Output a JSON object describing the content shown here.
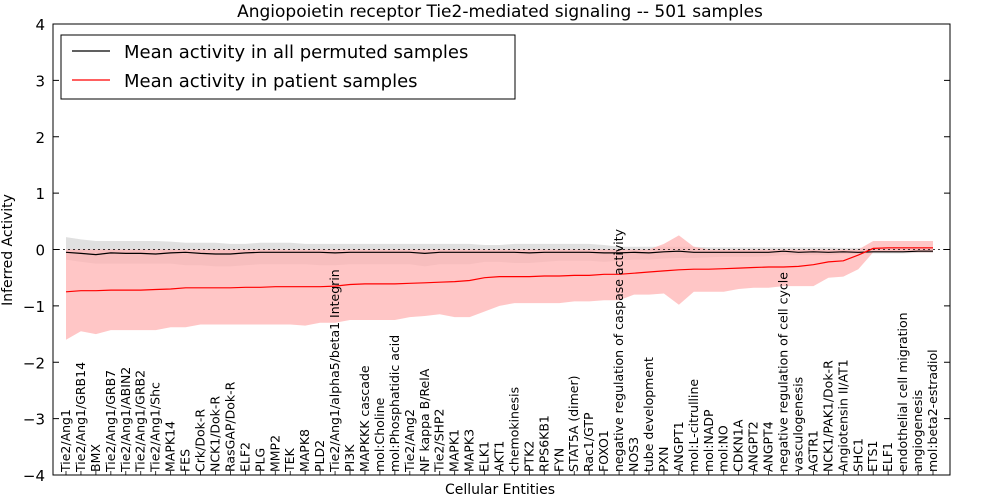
{
  "chart_data": {
    "type": "line",
    "title": "Angiopoietin receptor Tie2-mediated signaling -- 501 samples",
    "xlabel": "Cellular Entities",
    "ylabel": "Inferred Activity",
    "ylim": [
      -4,
      4
    ],
    "yticks": [
      -4,
      -3,
      -2,
      -1,
      0,
      1,
      2,
      3,
      4
    ],
    "grid": false,
    "legend_position": "upper-left",
    "zero_reference_line": 0,
    "categories": [
      "Tie2/Ang1",
      "Tie2/Ang1/GRB14",
      "BMX",
      "Tie2/Ang1/GRB7",
      "Tie2/Ang1/ABIN2",
      "Tie2/Ang1/GRB2",
      "Tie2/Ang1/Shc",
      "MAPK14",
      "FES",
      "Crk/Dok-R",
      "NCK1/Dok-R",
      "RasGAP/Dok-R",
      "ELF2",
      "PLG",
      "MMP2",
      "TEK",
      "MAPK8",
      "PLD2",
      "Tie2/Ang1/alpha5/beta1 Integrin",
      "PI3K",
      "MAPKKK cascade",
      "mol:Choline",
      "mol:Phosphatidic acid",
      "Tie2/Ang2",
      "NF kappa B/RelA",
      "Tie2/SHP2",
      "MAPK1",
      "MAPK3",
      "ELK1",
      "AKT1",
      "chemokinesis",
      "PTK2",
      "RPS6KB1",
      "FYN",
      "STAT5A (dimer)",
      "Rac1/GTP",
      "FOXO1",
      "negative regulation of caspase activity",
      "NOS3",
      "tube development",
      "PXN",
      "ANGPT1",
      "mol:L-citrulline",
      "mol:NADP",
      "mol:NO",
      "CDKN1A",
      "ANGPT2",
      "ANGPT4",
      "negative regulation of cell cycle",
      "vasculogenesis",
      "AGTR1",
      "NCK1/PAK1/Dok-R",
      "Angiotensin II/AT1",
      "SHC1",
      "ETS1",
      "ELF1",
      "endothelial cell migration",
      "angiogenesis",
      "mol:beta2-estradiol"
    ],
    "series": [
      {
        "name": "Mean activity in all permuted samples",
        "color": "#000000",
        "band_color": "#cccccc",
        "values": [
          -0.05,
          -0.07,
          -0.09,
          -0.06,
          -0.07,
          -0.07,
          -0.08,
          -0.06,
          -0.05,
          -0.07,
          -0.08,
          -0.08,
          -0.06,
          -0.05,
          -0.05,
          -0.05,
          -0.05,
          -0.05,
          -0.06,
          -0.05,
          -0.05,
          -0.05,
          -0.05,
          -0.05,
          -0.07,
          -0.05,
          -0.05,
          -0.05,
          -0.05,
          -0.05,
          -0.05,
          -0.06,
          -0.05,
          -0.05,
          -0.05,
          -0.05,
          -0.06,
          -0.06,
          -0.05,
          -0.06,
          -0.04,
          -0.03,
          -0.05,
          -0.05,
          -0.05,
          -0.05,
          -0.05,
          -0.05,
          -0.03,
          -0.05,
          -0.04,
          -0.05,
          -0.04,
          -0.05,
          -0.04,
          -0.04,
          -0.04,
          -0.03,
          -0.03
        ],
        "upper": [
          0.22,
          0.18,
          0.15,
          0.15,
          0.15,
          0.15,
          0.15,
          0.14,
          0.12,
          0.12,
          0.12,
          0.1,
          0.1,
          0.12,
          0.12,
          0.12,
          0.1,
          0.1,
          0.1,
          0.1,
          0.1,
          0.1,
          0.1,
          0.1,
          0.1,
          0.1,
          0.1,
          0.1,
          0.08,
          0.08,
          0.1,
          0.1,
          0.1,
          0.1,
          0.1,
          0.1,
          0.08,
          0.05,
          0.05,
          0.05,
          0.05,
          0.05,
          0.05,
          0.04,
          0.04,
          0.04,
          0.04,
          0.04,
          0.04,
          0.04,
          0.04,
          0.04,
          0.03,
          0.03,
          0.03,
          0.03,
          0.03,
          0.03,
          0.03
        ],
        "lower": [
          -0.18,
          -0.22,
          -0.25,
          -0.25,
          -0.25,
          -0.25,
          -0.25,
          -0.25,
          -0.28,
          -0.28,
          -0.3,
          -0.3,
          -0.28,
          -0.26,
          -0.26,
          -0.26,
          -0.26,
          -0.28,
          -0.28,
          -0.26,
          -0.26,
          -0.26,
          -0.26,
          -0.26,
          -0.3,
          -0.26,
          -0.26,
          -0.26,
          -0.22,
          -0.22,
          -0.24,
          -0.24,
          -0.22,
          -0.2,
          -0.2,
          -0.2,
          -0.22,
          -0.2,
          -0.18,
          -0.18,
          -0.16,
          -0.15,
          -0.15,
          -0.14,
          -0.13,
          -0.13,
          -0.13,
          -0.12,
          -0.1,
          -0.1,
          -0.1,
          -0.1,
          -0.08,
          -0.08,
          -0.07,
          -0.07,
          -0.07,
          -0.06,
          -0.06
        ]
      },
      {
        "name": "Mean activity in patient samples",
        "color": "#ff0000",
        "band_color": "#ffb3b3",
        "values": [
          -0.75,
          -0.73,
          -0.73,
          -0.72,
          -0.72,
          -0.72,
          -0.71,
          -0.7,
          -0.68,
          -0.68,
          -0.68,
          -0.68,
          -0.67,
          -0.67,
          -0.66,
          -0.66,
          -0.66,
          -0.66,
          -0.65,
          -0.62,
          -0.61,
          -0.61,
          -0.61,
          -0.6,
          -0.59,
          -0.58,
          -0.57,
          -0.55,
          -0.5,
          -0.48,
          -0.48,
          -0.48,
          -0.47,
          -0.47,
          -0.46,
          -0.46,
          -0.44,
          -0.44,
          -0.42,
          -0.4,
          -0.38,
          -0.36,
          -0.35,
          -0.35,
          -0.34,
          -0.33,
          -0.32,
          -0.31,
          -0.31,
          -0.3,
          -0.27,
          -0.22,
          -0.2,
          -0.1,
          0.02,
          0.03,
          0.03,
          0.03,
          0.03
        ],
        "upper": [
          0.0,
          0.0,
          0.0,
          0.0,
          0.0,
          0.0,
          0.0,
          0.0,
          0.0,
          0.0,
          0.0,
          0.0,
          0.0,
          0.0,
          0.0,
          0.0,
          0.0,
          0.0,
          0.0,
          0.0,
          0.0,
          0.0,
          0.0,
          0.0,
          0.0,
          0.0,
          0.0,
          0.0,
          0.0,
          0.0,
          0.0,
          0.0,
          0.0,
          0.0,
          0.0,
          0.0,
          0.0,
          0.0,
          0.0,
          0.0,
          0.1,
          0.25,
          0.05,
          0.0,
          0.0,
          0.0,
          0.0,
          0.0,
          0.0,
          0.0,
          0.0,
          0.0,
          0.0,
          0.0,
          0.15,
          0.15,
          0.15,
          0.15,
          0.15
        ],
        "lower": [
          -1.6,
          -1.45,
          -1.5,
          -1.43,
          -1.43,
          -1.43,
          -1.43,
          -1.38,
          -1.38,
          -1.33,
          -1.33,
          -1.33,
          -1.33,
          -1.33,
          -1.33,
          -1.33,
          -1.35,
          -1.3,
          -1.3,
          -1.25,
          -1.25,
          -1.25,
          -1.25,
          -1.2,
          -1.18,
          -1.15,
          -1.2,
          -1.2,
          -1.1,
          -1.0,
          -0.95,
          -0.95,
          -0.95,
          -0.95,
          -0.92,
          -0.92,
          -0.9,
          -0.9,
          -0.8,
          -0.8,
          -0.78,
          -0.98,
          -0.75,
          -0.75,
          -0.75,
          -0.7,
          -0.68,
          -0.68,
          -0.65,
          -0.65,
          -0.65,
          -0.5,
          -0.48,
          -0.35,
          -0.05,
          -0.05,
          -0.05,
          -0.05,
          -0.05
        ]
      }
    ]
  }
}
